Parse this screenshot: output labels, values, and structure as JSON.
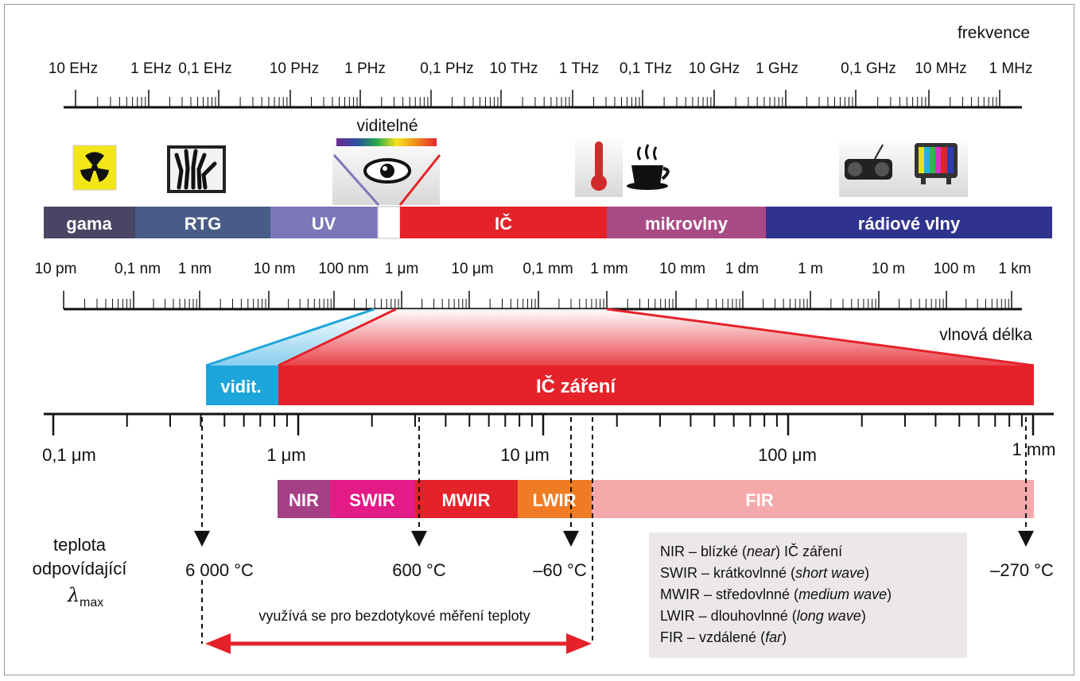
{
  "frequency": {
    "title": "frekvence",
    "labels": [
      "10 EHz",
      "1 EHz",
      "0,1 EHz",
      "10 PHz",
      "1 PHz",
      "0,1 PHz",
      "10 THz",
      "1 THz",
      "0,1 THz",
      "10 GHz",
      "1 GHz",
      "0,1 GHz",
      "10 MHz",
      "1 MHz"
    ]
  },
  "visible_label": "viditelné",
  "bands": [
    "gama",
    "RTG",
    "UV",
    "",
    "IČ",
    "mikrovlny",
    "rádiové vlny"
  ],
  "wavelength": {
    "title": "vlnová délka",
    "labels": [
      "10 pm",
      "0,1 nm",
      "1 nm",
      "10 nm",
      "100 nm",
      "1 μm",
      "10 μm",
      "0,1 mm",
      "1 mm",
      "10 mm",
      "1 dm",
      "1 m",
      "10 m",
      "100 m",
      "1 km"
    ]
  },
  "zoom": {
    "visible_label": "vidit.",
    "ir_label": "IČ záření",
    "axis_labels": [
      "0,1 μm",
      "1 μm",
      "10 μm",
      "100 μm",
      "1 mm"
    ]
  },
  "subbands": [
    "NIR",
    "SWIR",
    "MWIR",
    "LWIR",
    "FIR"
  ],
  "temperature": {
    "label_line1": "teplota",
    "label_line2": "odpovídající",
    "lambda_symbol": "λ",
    "lambda_sub": "max",
    "values": [
      "6 000 °C",
      "600 °C",
      "–60 °C",
      "–270 °C"
    ]
  },
  "arrow_label": "využívá se pro bezdotykové měření teploty",
  "legend": [
    {
      "abbr": "NIR",
      "pre": " – blízké (",
      "italic": "near",
      "post": ") IČ záření"
    },
    {
      "abbr": "SWIR",
      "pre": " – krátkovlnné (",
      "italic": "short wave",
      "post": ")"
    },
    {
      "abbr": "MWIR",
      "pre": " – středovlnné (",
      "italic": "medium wave",
      "post": ")"
    },
    {
      "abbr": "LWIR",
      "pre": " – dlouhovlnné (",
      "italic": "long wave",
      "post": ")"
    },
    {
      "abbr": "FIR",
      "pre": " – vzdálené (",
      "italic": "far",
      "post": ")"
    }
  ],
  "colors": {
    "gama": "#4a4565",
    "rtg": "#475c86",
    "uv": "#7b77b9",
    "ir": "#e5222a",
    "micro": "#a84a85",
    "radio": "#30338e",
    "vis_zoom": "#1da6dc",
    "nir": "#a53f86",
    "swir": "#e21b86",
    "mwir": "#e5222a",
    "lwir": "#ef7c24",
    "fir": "#f5a9ab"
  },
  "icons": [
    "radiation-icon",
    "xray-hand-icon",
    "eye-spectrum-icon",
    "thermometer-icon",
    "coffee-cup-icon",
    "radio-icon",
    "tv-icon"
  ]
}
